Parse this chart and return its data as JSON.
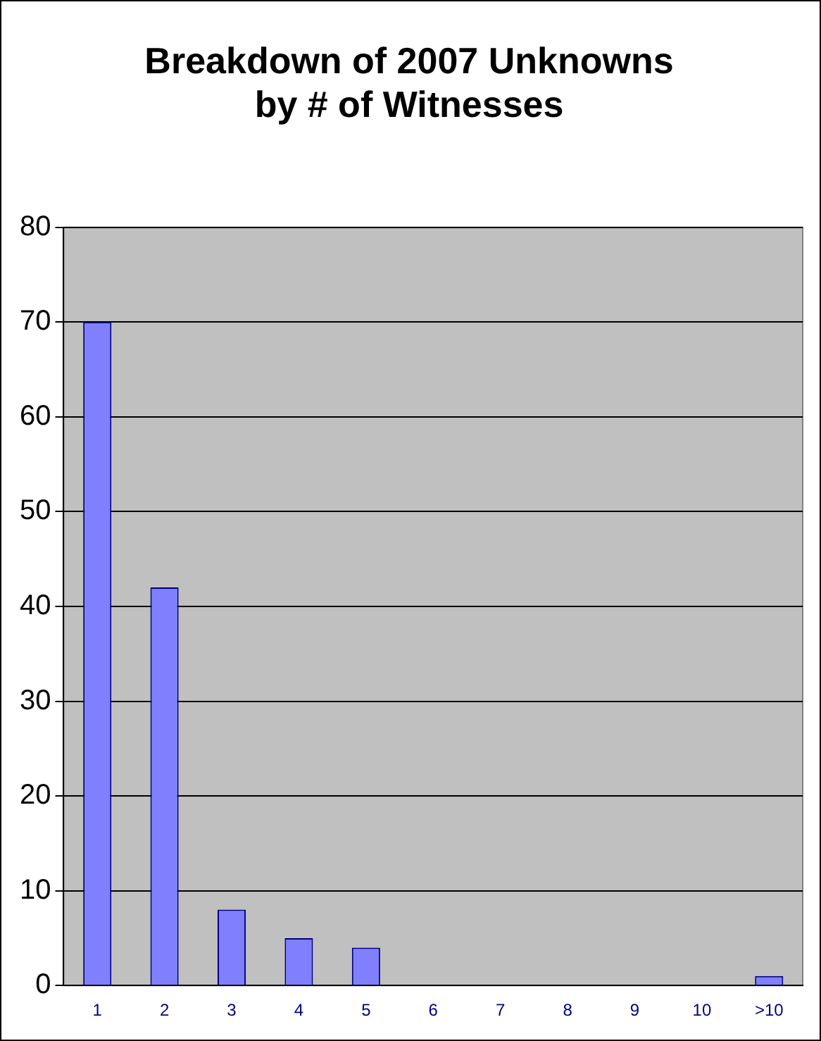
{
  "chart_data": {
    "type": "bar",
    "title": "Breakdown of 2007 Unknowns\nby # of Witnesses",
    "categories": [
      "1",
      "2",
      "3",
      "4",
      "5",
      "6",
      "7",
      "8",
      "9",
      "10",
      ">10"
    ],
    "values": [
      70,
      42,
      8,
      5,
      4,
      0,
      0,
      0,
      0,
      0,
      1
    ],
    "color": "#8080ff",
    "ylim": [
      0,
      80
    ],
    "yticks": [
      0,
      10,
      20,
      30,
      40,
      50,
      60,
      70,
      80
    ],
    "grid": "y",
    "legend": false
  }
}
